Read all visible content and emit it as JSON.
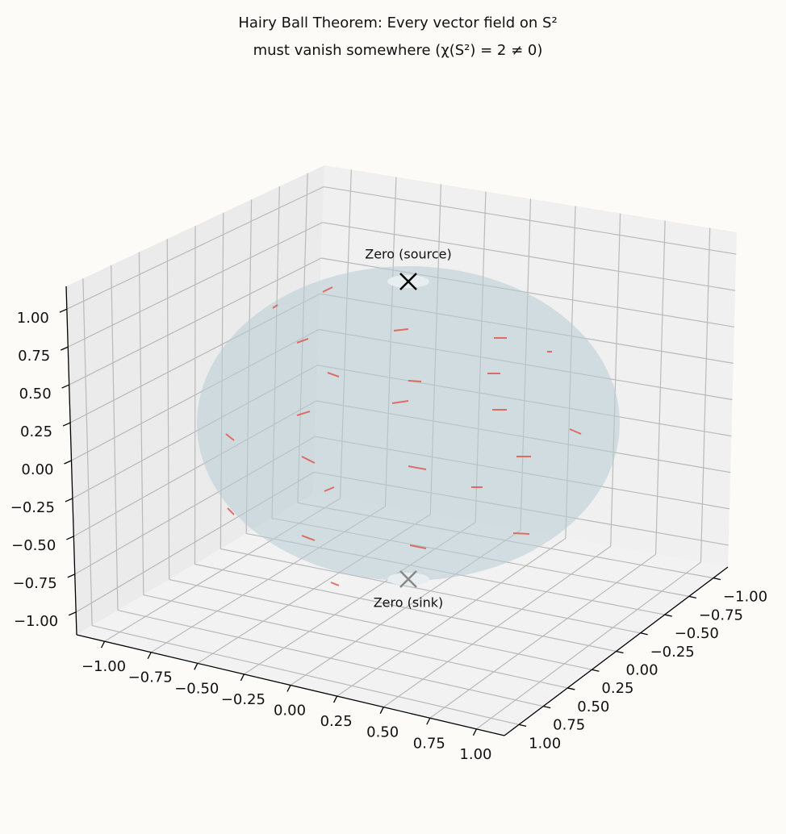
{
  "chart_data": {
    "type": "surface3d",
    "title": [
      "Hairy Ball Theorem: Every vector field on S²",
      "must vanish somewhere (χ(S²) = 2 ≠ 0)"
    ],
    "annotations": [
      "Zero (source)",
      "Zero (sink)"
    ],
    "xlim": [
      -1.15,
      1.15
    ],
    "ylim": [
      -1.15,
      1.15
    ],
    "zlim": [
      -1.15,
      1.15
    ],
    "xticks": [
      {
        "value": -1,
        "label": "−1.00"
      },
      {
        "value": -0.75,
        "label": "−0.75"
      },
      {
        "value": -0.5,
        "label": "−0.50"
      },
      {
        "value": -0.25,
        "label": "−0.25"
      },
      {
        "value": 0,
        "label": "0.00"
      },
      {
        "value": 0.25,
        "label": "0.25"
      },
      {
        "value": 0.5,
        "label": "0.50"
      },
      {
        "value": 0.75,
        "label": "0.75"
      },
      {
        "value": 1,
        "label": "1.00"
      }
    ],
    "yticks": [
      {
        "value": -1,
        "label": "−1.00"
      },
      {
        "value": -0.75,
        "label": "−0.75"
      },
      {
        "value": -0.5,
        "label": "−0.50"
      },
      {
        "value": -0.25,
        "label": "−0.25"
      },
      {
        "value": 0,
        "label": "0.00"
      },
      {
        "value": 0.25,
        "label": "0.25"
      },
      {
        "value": 0.5,
        "label": "0.50"
      },
      {
        "value": 0.75,
        "label": "0.75"
      },
      {
        "value": 1,
        "label": "1.00"
      }
    ],
    "zticks": [
      {
        "value": -1,
        "label": "−1.00"
      },
      {
        "value": -0.75,
        "label": "−0.75"
      },
      {
        "value": -0.5,
        "label": "−0.50"
      },
      {
        "value": -0.25,
        "label": "−0.25"
      },
      {
        "value": 0,
        "label": "0.00"
      },
      {
        "value": 0.25,
        "label": "0.25"
      },
      {
        "value": 0.5,
        "label": "0.50"
      },
      {
        "value": 0.75,
        "label": "0.75"
      },
      {
        "value": 1,
        "label": "1.00"
      }
    ],
    "grid": true,
    "color": "#e05a4f"
  }
}
